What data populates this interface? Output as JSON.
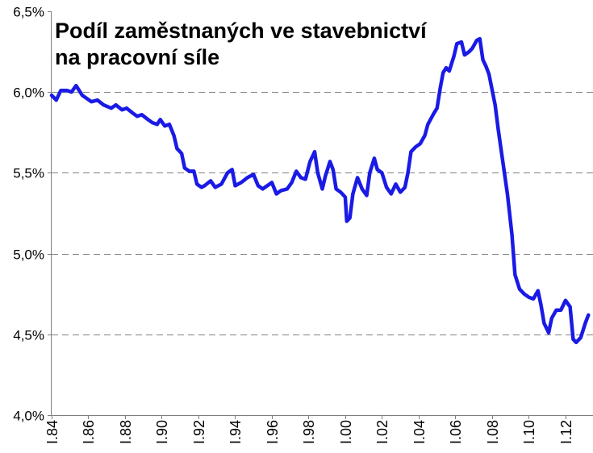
{
  "chart_data": {
    "type": "line",
    "title_lines": [
      "Podíl zaměstnaných ve stavebnictví",
      "na pracovní síle"
    ],
    "ylim": [
      4.0,
      6.5
    ],
    "xlim": [
      "1984-01",
      "2013-07"
    ],
    "grid": true,
    "y_ticks": [
      {
        "value": 6.5,
        "label": "6,5%"
      },
      {
        "value": 6.0,
        "label": "6,0%"
      },
      {
        "value": 5.5,
        "label": "5,5%"
      },
      {
        "value": 5.0,
        "label": "5,0%"
      },
      {
        "value": 4.5,
        "label": "4,5%"
      },
      {
        "value": 4.0,
        "label": "4,0%"
      }
    ],
    "x_ticks": [
      {
        "date": "1984-01",
        "label": "I.84"
      },
      {
        "date": "1986-01",
        "label": "I.86"
      },
      {
        "date": "1988-01",
        "label": "I.88"
      },
      {
        "date": "1990-01",
        "label": "I.90"
      },
      {
        "date": "1992-01",
        "label": "I.92"
      },
      {
        "date": "1994-01",
        "label": "I.94"
      },
      {
        "date": "1996-01",
        "label": "I.96"
      },
      {
        "date": "1998-01",
        "label": "I.98"
      },
      {
        "date": "2000-01",
        "label": "I.00"
      },
      {
        "date": "2002-01",
        "label": "I.02"
      },
      {
        "date": "2004-01",
        "label": "I.04"
      },
      {
        "date": "2006-01",
        "label": "I.06"
      },
      {
        "date": "2008-01",
        "label": "I.08"
      },
      {
        "date": "2010-01",
        "label": "I.10"
      },
      {
        "date": "2012-01",
        "label": "I.12"
      }
    ],
    "x": [
      "1984-01",
      "1984-04",
      "1984-07",
      "1984-11",
      "1985-02",
      "1985-05",
      "1985-09",
      "1985-12",
      "1986-03",
      "1986-07",
      "1986-11",
      "1987-04",
      "1987-07",
      "1987-11",
      "1988-02",
      "1988-06",
      "1988-09",
      "1988-12",
      "1989-04",
      "1989-07",
      "1989-10",
      "1989-12",
      "1990-03",
      "1990-06",
      "1990-09",
      "1990-11",
      "1991-02",
      "1991-04",
      "1991-07",
      "1991-10",
      "1991-12",
      "1992-03",
      "1992-05",
      "1992-09",
      "1992-12",
      "1993-04",
      "1993-08",
      "1993-11",
      "1994-01",
      "1994-05",
      "1994-09",
      "1995-01",
      "1995-04",
      "1995-07",
      "1995-10",
      "1996-01",
      "1996-04",
      "1996-07",
      "1996-11",
      "1997-02",
      "1997-05",
      "1997-08",
      "1997-11",
      "1998-02",
      "1998-05",
      "1998-07",
      "1998-10",
      "1998-12",
      "1999-03",
      "1999-05",
      "1999-07",
      "1999-10",
      "2000-01",
      "2000-02",
      "2000-04",
      "2000-06",
      "2000-09",
      "2000-12",
      "2001-03",
      "2001-05",
      "2001-08",
      "2001-10",
      "2002-01",
      "2002-04",
      "2002-07",
      "2002-10",
      "2003-01",
      "2003-04",
      "2003-06",
      "2003-08",
      "2003-11",
      "2004-02",
      "2004-05",
      "2004-07",
      "2004-11",
      "2005-01",
      "2005-03",
      "2005-05",
      "2005-07",
      "2005-09",
      "2005-12",
      "2006-02",
      "2006-05",
      "2006-07",
      "2006-10",
      "2006-12",
      "2007-03",
      "2007-05",
      "2007-07",
      "2007-09",
      "2007-11",
      "2008-03",
      "2008-05",
      "2008-08",
      "2008-11",
      "2009-02",
      "2009-04",
      "2009-07",
      "2009-10",
      "2010-01",
      "2010-04",
      "2010-07",
      "2010-09",
      "2010-11",
      "2011-02",
      "2011-04",
      "2011-07",
      "2011-10",
      "2012-01",
      "2012-04",
      "2012-06",
      "2012-08",
      "2012-11",
      "2013-02",
      "2013-04"
    ],
    "series": [
      {
        "color": "#1a1ae6",
        "values": [
          5.98,
          5.95,
          6.01,
          6.01,
          6.0,
          6.04,
          5.98,
          5.96,
          5.94,
          5.95,
          5.92,
          5.9,
          5.92,
          5.89,
          5.9,
          5.87,
          5.85,
          5.86,
          5.83,
          5.81,
          5.8,
          5.83,
          5.79,
          5.8,
          5.73,
          5.65,
          5.62,
          5.53,
          5.51,
          5.51,
          5.43,
          5.41,
          5.42,
          5.45,
          5.41,
          5.43,
          5.5,
          5.52,
          5.42,
          5.44,
          5.47,
          5.49,
          5.42,
          5.4,
          5.42,
          5.44,
          5.37,
          5.39,
          5.4,
          5.44,
          5.51,
          5.47,
          5.46,
          5.57,
          5.63,
          5.5,
          5.4,
          5.48,
          5.57,
          5.52,
          5.4,
          5.38,
          5.35,
          5.2,
          5.22,
          5.37,
          5.47,
          5.4,
          5.36,
          5.5,
          5.59,
          5.52,
          5.5,
          5.41,
          5.37,
          5.43,
          5.38,
          5.41,
          5.5,
          5.63,
          5.66,
          5.68,
          5.73,
          5.8,
          5.87,
          5.9,
          6.02,
          6.12,
          6.15,
          6.13,
          6.22,
          6.3,
          6.31,
          6.23,
          6.25,
          6.27,
          6.32,
          6.33,
          6.2,
          6.16,
          6.11,
          5.92,
          5.77,
          5.57,
          5.37,
          5.12,
          4.87,
          4.78,
          4.75,
          4.73,
          4.72,
          4.77,
          4.68,
          4.57,
          4.51,
          4.6,
          4.65,
          4.65,
          4.71,
          4.67,
          4.47,
          4.45,
          4.48,
          4.57,
          4.62
        ]
      }
    ]
  }
}
